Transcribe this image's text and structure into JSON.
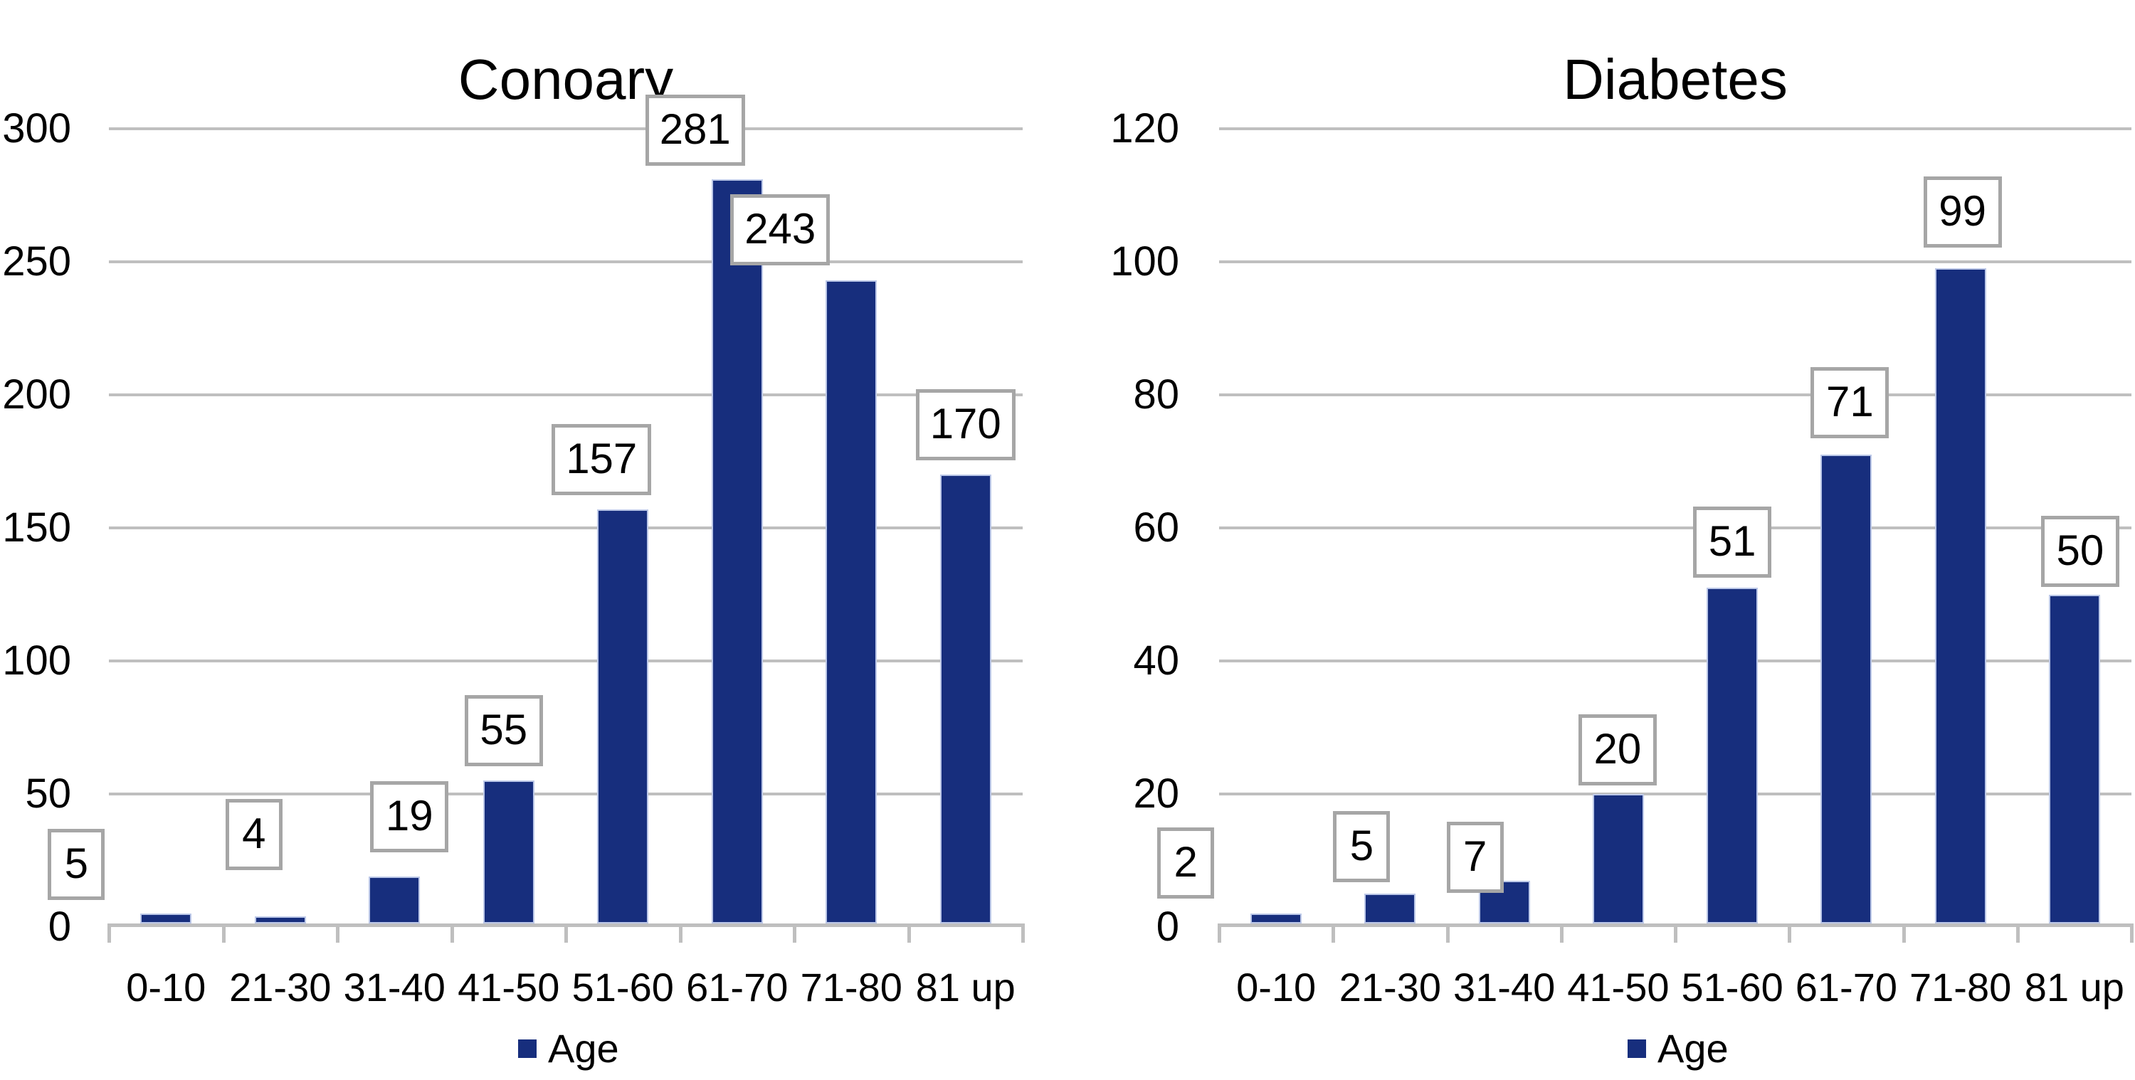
{
  "figure": {
    "description": "Two bar charts of patient counts by age group"
  },
  "colors": {
    "bar": "#172E7D",
    "bar_border": "#BCC8E8",
    "gridline": "#BFBFBF",
    "axis": "#BFBFBF",
    "callout_border": "#A6A6A6",
    "callout_bg": "#FFFFFF",
    "text": "#000000"
  },
  "chart_data": [
    {
      "type": "bar",
      "title": "Conoary",
      "legend": "Age",
      "categories": [
        "0-10",
        "21-30",
        "31-40",
        "41-50",
        "51-60",
        "61-70",
        "71-80",
        "81 up"
      ],
      "values": [
        5,
        4,
        19,
        55,
        157,
        281,
        243,
        170
      ],
      "y_ticks": [
        0,
        50,
        100,
        150,
        200,
        250,
        300
      ],
      "ylim": [
        0,
        300
      ],
      "xlabel": "",
      "ylabel": "",
      "grid": true,
      "data_labels_boxed": true,
      "legend_position": "bottom"
    },
    {
      "type": "bar",
      "title": "Diabetes",
      "legend": "Age",
      "categories": [
        "0-10",
        "21-30",
        "31-40",
        "41-50",
        "51-60",
        "61-70",
        "71-80",
        "81 up"
      ],
      "values": [
        2,
        5,
        7,
        20,
        51,
        71,
        99,
        50
      ],
      "y_ticks": [
        0,
        20,
        40,
        60,
        80,
        100,
        120
      ],
      "ylim": [
        0,
        120
      ],
      "xlabel": "",
      "ylabel": "",
      "grid": true,
      "data_labels_boxed": true,
      "legend_position": "bottom"
    }
  ]
}
